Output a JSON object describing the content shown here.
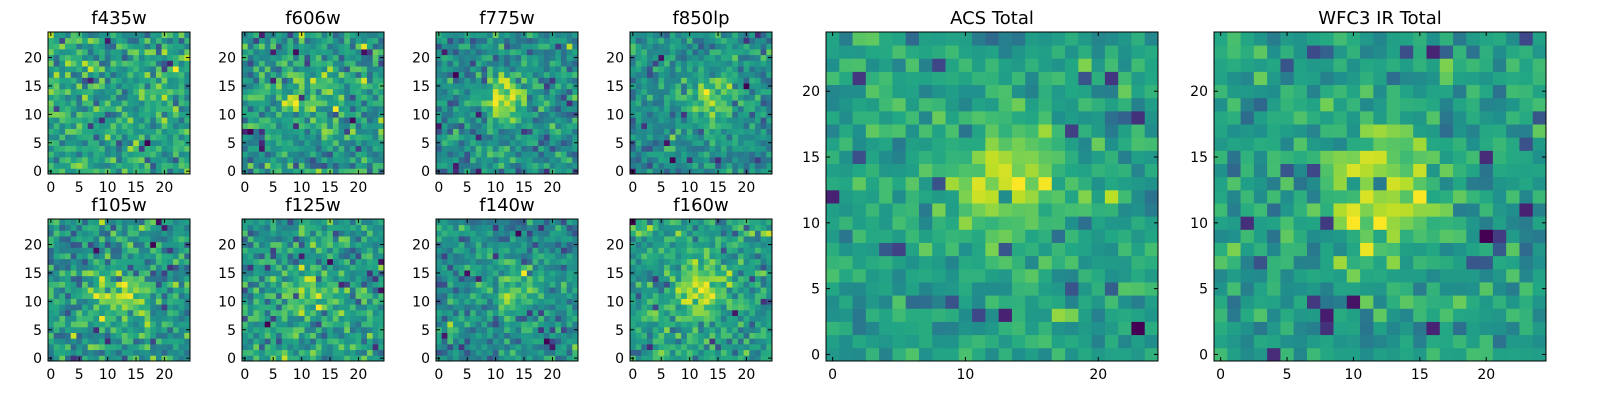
{
  "chart_data": [
    {
      "type": "heatmap",
      "title": "f435w",
      "grid_size": 25,
      "colormap": "viridis",
      "source": "noise",
      "xticks": [
        0,
        5,
        10,
        15,
        20
      ],
      "yticks": [
        0,
        5,
        10,
        15,
        20
      ],
      "xlim": [
        0,
        24
      ],
      "ylim": [
        0,
        24
      ]
    },
    {
      "type": "heatmap",
      "title": "f606w",
      "grid_size": 25,
      "colormap": "viridis",
      "source": "weak-center",
      "blob_center": [
        12,
        13
      ],
      "xticks": [
        0,
        5,
        10,
        15,
        20
      ],
      "yticks": [
        0,
        5,
        10,
        15,
        20
      ],
      "xlim": [
        0,
        24
      ],
      "ylim": [
        0,
        24
      ]
    },
    {
      "type": "heatmap",
      "title": "f775w",
      "grid_size": 25,
      "colormap": "viridis",
      "source": "center",
      "blob_center": [
        11,
        13
      ],
      "xticks": [
        0,
        5,
        10,
        15,
        20
      ],
      "yticks": [
        0,
        5,
        10,
        15,
        20
      ],
      "xlim": [
        0,
        24
      ],
      "ylim": [
        0,
        24
      ]
    },
    {
      "type": "heatmap",
      "title": "f850lp",
      "grid_size": 25,
      "colormap": "viridis",
      "source": "center",
      "blob_center": [
        14,
        13
      ],
      "xticks": [
        0,
        5,
        10,
        15,
        20
      ],
      "yticks": [
        0,
        5,
        10,
        15,
        20
      ],
      "xlim": [
        0,
        24
      ],
      "ylim": [
        0,
        24
      ]
    },
    {
      "type": "heatmap",
      "title": "f105w",
      "grid_size": 25,
      "colormap": "viridis",
      "source": "center",
      "blob_center": [
        12,
        12
      ],
      "xticks": [
        0,
        5,
        10,
        15,
        20
      ],
      "yticks": [
        0,
        5,
        10,
        15,
        20
      ],
      "xlim": [
        0,
        24
      ],
      "ylim": [
        0,
        24
      ]
    },
    {
      "type": "heatmap",
      "title": "f125w",
      "grid_size": 25,
      "colormap": "viridis",
      "source": "weak-center",
      "blob_center": [
        12,
        11
      ],
      "xticks": [
        0,
        5,
        10,
        15,
        20
      ],
      "yticks": [
        0,
        5,
        10,
        15,
        20
      ],
      "xlim": [
        0,
        24
      ],
      "ylim": [
        0,
        24
      ]
    },
    {
      "type": "heatmap",
      "title": "f140w",
      "grid_size": 25,
      "colormap": "viridis",
      "source": "center",
      "blob_center": [
        13,
        13
      ],
      "xticks": [
        0,
        5,
        10,
        15,
        20
      ],
      "yticks": [
        0,
        5,
        10,
        15,
        20
      ],
      "xlim": [
        0,
        24
      ],
      "ylim": [
        0,
        24
      ]
    },
    {
      "type": "heatmap",
      "title": "f160w",
      "grid_size": 25,
      "colormap": "viridis",
      "source": "center",
      "blob_center": [
        12,
        12
      ],
      "xticks": [
        0,
        5,
        10,
        15,
        20
      ],
      "yticks": [
        0,
        5,
        10,
        15,
        20
      ],
      "xlim": [
        0,
        24
      ],
      "ylim": [
        0,
        24
      ]
    },
    {
      "type": "heatmap",
      "title": "ACS Total",
      "grid_size": 25,
      "colormap": "viridis",
      "source": "center",
      "blob_center": [
        13,
        13
      ],
      "xticks": [
        0,
        10,
        20
      ],
      "yticks": [
        0,
        5,
        10,
        15,
        20
      ],
      "xlim": [
        0,
        24
      ],
      "ylim": [
        0,
        24
      ]
    },
    {
      "type": "heatmap",
      "title": "WFC3 IR Total",
      "grid_size": 25,
      "colormap": "viridis",
      "source": "center",
      "blob_center": [
        12,
        13
      ],
      "xticks": [
        0,
        5,
        10,
        15,
        20
      ],
      "yticks": [
        0,
        5,
        10,
        15,
        20
      ],
      "xlim": [
        0,
        24
      ],
      "ylim": [
        0,
        24
      ]
    }
  ]
}
